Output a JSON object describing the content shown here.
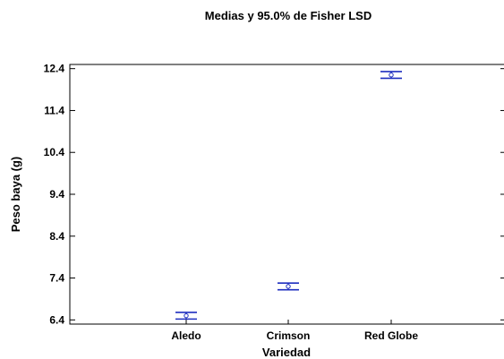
{
  "chart_data": {
    "type": "scatter",
    "title": "Medias y 95.0% de Fisher LSD",
    "xlabel": "Variedad",
    "ylabel": "Peso baya (g)",
    "categories": [
      "Aledo",
      "Crimson",
      "Red Globe"
    ],
    "y_ticks": [
      "6.4",
      "7.4",
      "8.4",
      "9.4",
      "10.4",
      "11.4",
      "12.4"
    ],
    "ylim": [
      6.3,
      12.5
    ],
    "series": [
      {
        "means": [
          6.5,
          7.2,
          12.25
        ],
        "lower": [
          6.42,
          7.12,
          12.17
        ],
        "upper": [
          6.58,
          7.28,
          12.33
        ]
      }
    ],
    "colors": {
      "interval": "#1f2fbf",
      "axis": "#000000"
    },
    "grid": false
  }
}
